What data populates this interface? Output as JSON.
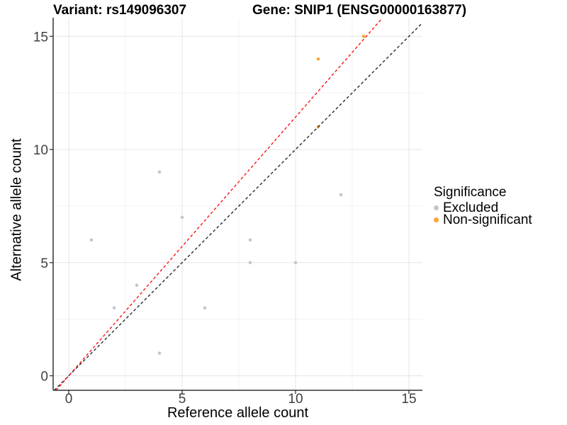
{
  "header": {
    "variant_title": "Variant: rs149096307",
    "gene_title": "Gene: SNIP1 (ENSG00000163877)"
  },
  "chart_data": {
    "type": "scatter",
    "xlabel": "Reference allele count",
    "ylabel": "Alternative allele count",
    "xlim": [
      -0.7,
      15.6
    ],
    "ylim": [
      -0.66,
      15.8
    ],
    "x_ticks": [
      0,
      5,
      10,
      15
    ],
    "y_ticks": [
      0,
      5,
      10,
      15
    ],
    "x_minor_ticks": [
      2.5,
      7.5,
      12.5
    ],
    "y_minor_ticks": [
      2.5,
      7.5,
      12.5
    ],
    "grid": "on",
    "legend": {
      "title": "Significance",
      "position": "right",
      "entries": [
        {
          "label": "Excluded",
          "color": "#c6c6c6"
        },
        {
          "label": "Non-significant",
          "color": "#f9a63b"
        }
      ]
    },
    "series": [
      {
        "name": "Excluded",
        "color": "#c6c6c6",
        "points": [
          [
            1,
            6
          ],
          [
            2,
            3
          ],
          [
            3,
            4
          ],
          [
            4,
            1
          ],
          [
            4,
            9
          ],
          [
            5,
            7
          ],
          [
            6,
            3
          ],
          [
            8,
            5
          ],
          [
            8,
            6
          ],
          [
            10,
            5
          ],
          [
            12,
            8
          ]
        ]
      },
      {
        "name": "Non-significant",
        "color": "#f9a63b",
        "points": [
          [
            11,
            11
          ],
          [
            11,
            14
          ],
          [
            13,
            15
          ]
        ]
      }
    ],
    "lines": [
      {
        "name": "identity-line",
        "color": "#1a1a1a",
        "dash": "4 3.2",
        "x1": -0.64,
        "y1": -0.64,
        "x2": 15.6,
        "y2": 15.6
      },
      {
        "name": "ratio-line",
        "color": "#ff0000",
        "dash": "4 3.2",
        "x1": -0.56,
        "y1": -0.64,
        "x2": 13.82,
        "y2": 15.8
      }
    ]
  },
  "style_colors": {
    "grid_major": "#e5e5e5",
    "grid_minor": "#f2f2f2",
    "axis_line": "#333333",
    "tick_label": "#404040"
  }
}
